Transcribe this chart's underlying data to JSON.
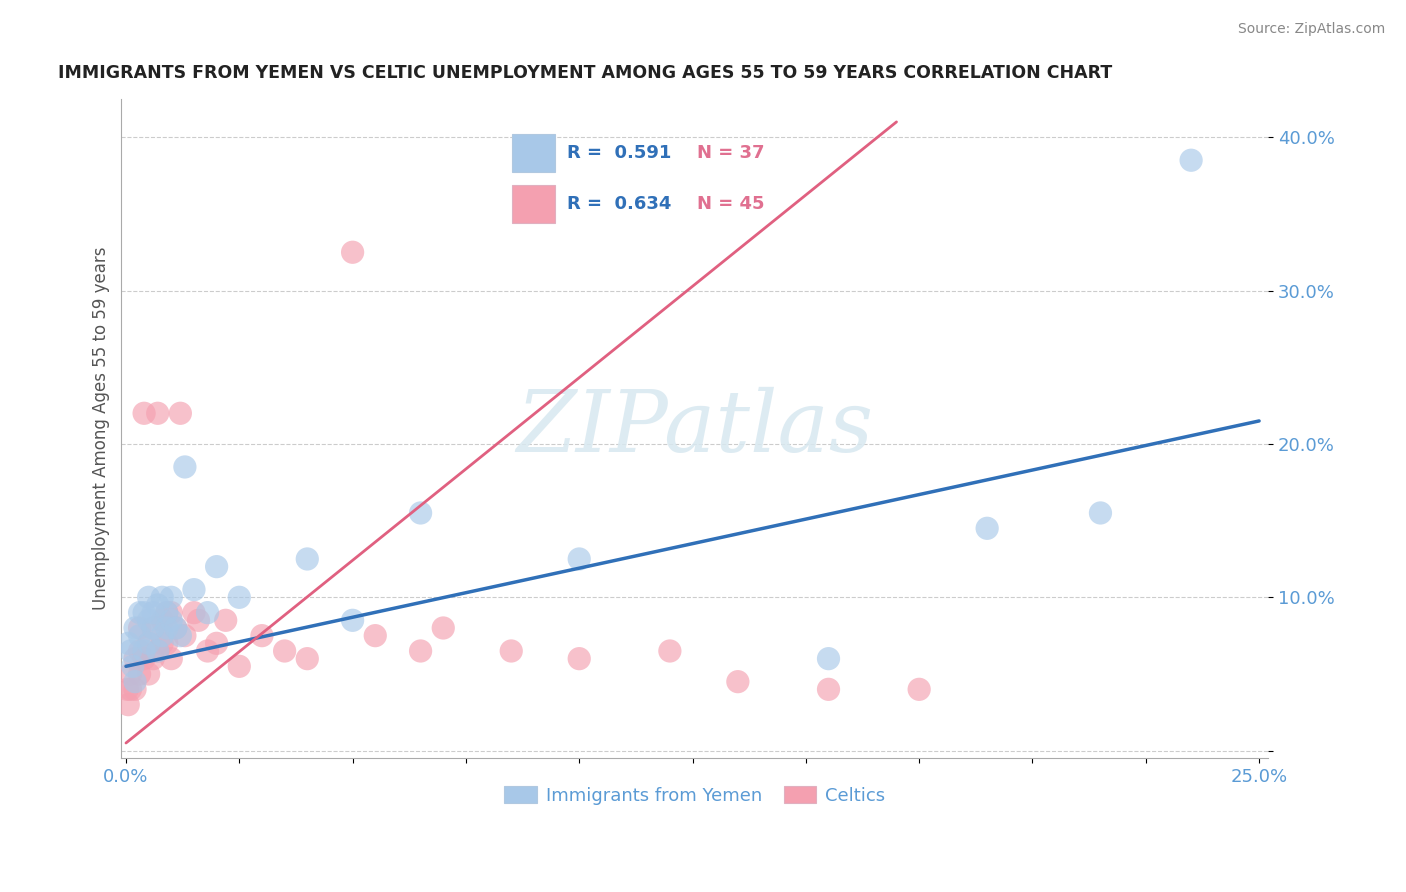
{
  "title": "IMMIGRANTS FROM YEMEN VS CELTIC UNEMPLOYMENT AMONG AGES 55 TO 59 YEARS CORRELATION CHART",
  "source": "Source: ZipAtlas.com",
  "ylabel": "Unemployment Among Ages 55 to 59 years",
  "xlim": [
    -0.001,
    0.252
  ],
  "ylim": [
    -0.005,
    0.425
  ],
  "ytick_vals": [
    0.0,
    0.1,
    0.2,
    0.3,
    0.4
  ],
  "ytick_labels": [
    "",
    "10.0%",
    "20.0%",
    "30.0%",
    "40.0%"
  ],
  "xtick_vals": [
    0.0,
    0.025,
    0.05,
    0.075,
    0.1,
    0.125,
    0.15,
    0.175,
    0.2,
    0.225,
    0.25
  ],
  "xtick_labels": [
    "0.0%",
    "",
    "",
    "",
    "",
    "",
    "",
    "",
    "",
    "",
    "25.0%"
  ],
  "blue_scatter_color": "#a8c8e8",
  "pink_scatter_color": "#f4a0b0",
  "blue_line_color": "#3070b8",
  "pink_line_color": "#e06080",
  "legend_box_color": "#a8c8e8",
  "legend_pink_color": "#f4a0b0",
  "tick_label_color": "#5b9bd5",
  "watermark": "ZIPatlas",
  "legend_blue_R": "0.591",
  "legend_blue_N": "37",
  "legend_pink_R": "0.634",
  "legend_pink_N": "45",
  "blue_scatter_x": [
    0.0005,
    0.001,
    0.0015,
    0.002,
    0.002,
    0.003,
    0.003,
    0.004,
    0.004,
    0.005,
    0.005,
    0.005,
    0.006,
    0.006,
    0.007,
    0.007,
    0.008,
    0.008,
    0.009,
    0.009,
    0.01,
    0.01,
    0.011,
    0.012,
    0.013,
    0.015,
    0.018,
    0.02,
    0.025,
    0.04,
    0.05,
    0.065,
    0.1,
    0.155,
    0.19,
    0.215,
    0.235
  ],
  "blue_scatter_y": [
    0.07,
    0.065,
    0.055,
    0.045,
    0.08,
    0.09,
    0.075,
    0.065,
    0.09,
    0.07,
    0.085,
    0.1,
    0.08,
    0.09,
    0.065,
    0.095,
    0.075,
    0.1,
    0.08,
    0.09,
    0.085,
    0.1,
    0.08,
    0.075,
    0.185,
    0.105,
    0.09,
    0.12,
    0.1,
    0.125,
    0.085,
    0.155,
    0.125,
    0.06,
    0.145,
    0.155,
    0.385
  ],
  "pink_scatter_x": [
    0.0003,
    0.0005,
    0.001,
    0.001,
    0.002,
    0.002,
    0.003,
    0.003,
    0.003,
    0.004,
    0.004,
    0.005,
    0.005,
    0.006,
    0.006,
    0.007,
    0.007,
    0.008,
    0.008,
    0.009,
    0.009,
    0.01,
    0.01,
    0.011,
    0.012,
    0.013,
    0.015,
    0.016,
    0.018,
    0.02,
    0.022,
    0.025,
    0.03,
    0.035,
    0.04,
    0.05,
    0.055,
    0.065,
    0.07,
    0.085,
    0.1,
    0.12,
    0.135,
    0.155,
    0.175
  ],
  "pink_scatter_y": [
    0.04,
    0.03,
    0.04,
    0.05,
    0.04,
    0.06,
    0.05,
    0.065,
    0.08,
    0.06,
    0.22,
    0.05,
    0.07,
    0.06,
    0.08,
    0.065,
    0.22,
    0.07,
    0.085,
    0.07,
    0.09,
    0.06,
    0.09,
    0.08,
    0.22,
    0.075,
    0.09,
    0.085,
    0.065,
    0.07,
    0.085,
    0.055,
    0.075,
    0.065,
    0.06,
    0.325,
    0.075,
    0.065,
    0.08,
    0.065,
    0.06,
    0.065,
    0.045,
    0.04,
    0.04
  ],
  "blue_trend_x": [
    0.0,
    0.25
  ],
  "blue_trend_y": [
    0.055,
    0.215
  ],
  "pink_trend_x": [
    0.0,
    0.17
  ],
  "pink_trend_y": [
    0.005,
    0.41
  ]
}
